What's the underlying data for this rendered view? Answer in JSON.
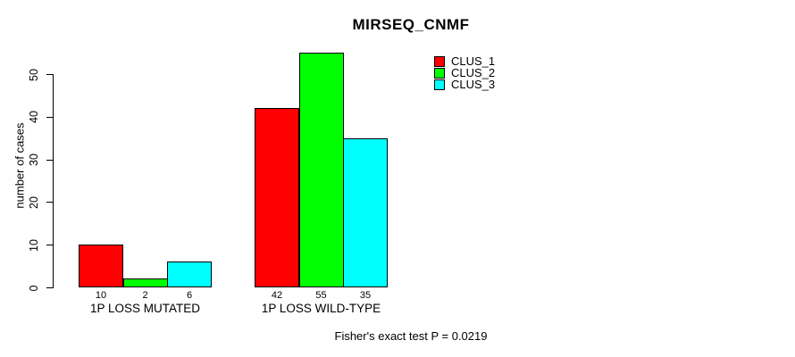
{
  "chart_data": {
    "type": "bar",
    "title": "MIRSEQ_CNMF",
    "ylabel": "number of cases",
    "xlabel": "",
    "categories": [
      "1P LOSS MUTATED",
      "1P LOSS WILD-TYPE"
    ],
    "series": [
      {
        "name": "CLUS_1",
        "color": "#ff0000",
        "values": [
          10,
          42
        ]
      },
      {
        "name": "CLUS_2",
        "color": "#00ff00",
        "values": [
          2,
          55
        ]
      },
      {
        "name": "CLUS_3",
        "color": "#00ffff",
        "values": [
          6,
          35
        ]
      }
    ],
    "bar_value_labels": [
      [
        "10",
        "2",
        "6"
      ],
      [
        "42",
        "55",
        "35"
      ]
    ],
    "y_ticks": [
      0,
      10,
      20,
      30,
      40,
      50
    ],
    "ylim": [
      0,
      57
    ],
    "grid": false,
    "legend_position": "top-right",
    "bar_border_color": "#000000",
    "axis_color": "#000000",
    "annotation": "Fisher's exact test P = 0.0219"
  }
}
